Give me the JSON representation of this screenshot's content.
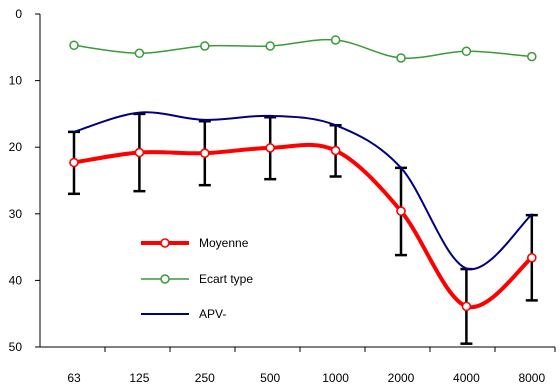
{
  "chart_data": {
    "type": "line",
    "title": "",
    "xlabel": "",
    "ylabel": "",
    "categories": [
      "63",
      "125",
      "250",
      "500",
      "1000",
      "2000",
      "4000",
      "8000"
    ],
    "y_ticks": [
      0,
      10,
      20,
      30,
      40,
      50
    ],
    "ylim": [
      0,
      50
    ],
    "y_inverted": true,
    "grid": false,
    "legend_position": "center-left",
    "series": [
      {
        "name": "Moyenne",
        "color": "#ff0000",
        "marker": "open-circle",
        "smooth": true,
        "values": [
          22.3,
          20.8,
          20.9,
          20.1,
          20.5,
          29.6,
          43.9,
          36.6
        ],
        "error_low": [
          27.0,
          26.6,
          25.7,
          24.8,
          24.4,
          36.2,
          49.5,
          43.0
        ],
        "error_high": [
          17.7,
          15.0,
          16.1,
          15.5,
          16.7,
          23.1,
          38.3,
          30.2
        ]
      },
      {
        "name": "Ecart type",
        "color": "#3a9a3a",
        "marker": "open-circle",
        "smooth": true,
        "values": [
          4.7,
          5.9,
          4.8,
          4.8,
          3.9,
          6.6,
          5.6,
          6.4
        ]
      },
      {
        "name": "APV-",
        "color": "#000080",
        "marker": "none",
        "smooth": true,
        "values": [
          17.7,
          14.8,
          15.9,
          15.3,
          16.7,
          23.1,
          38.2,
          30.1
        ]
      }
    ]
  }
}
